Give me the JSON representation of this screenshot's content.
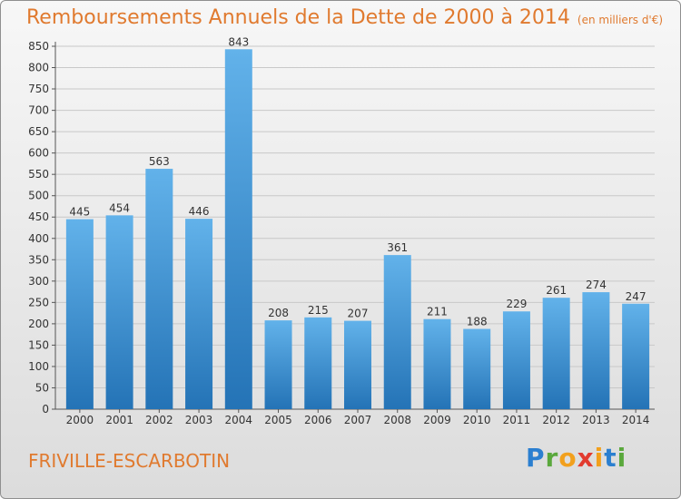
{
  "title": "Remboursements Annuels de la Dette de 2000 à 2014",
  "title_unit": "(en milliers d'€)",
  "commune": "FRIVILLE-ESCARBOTIN",
  "logo_text": "Proxiti",
  "colors": {
    "title": "#e07a2f",
    "bar_top": "#62b2ea",
    "bar_bottom": "#2473b6"
  },
  "chart_data": {
    "type": "bar",
    "categories": [
      "2000",
      "2001",
      "2002",
      "2003",
      "2004",
      "2005",
      "2006",
      "2007",
      "2008",
      "2009",
      "2010",
      "2011",
      "2012",
      "2013",
      "2014"
    ],
    "values": [
      445,
      454,
      563,
      446,
      843,
      208,
      215,
      207,
      361,
      211,
      188,
      229,
      261,
      274,
      247
    ],
    "ylim": [
      0,
      850
    ],
    "yticks": [
      0,
      50,
      100,
      150,
      200,
      250,
      300,
      350,
      400,
      450,
      500,
      550,
      600,
      650,
      700,
      750,
      800,
      850
    ],
    "grid": true,
    "data_labels": true
  }
}
